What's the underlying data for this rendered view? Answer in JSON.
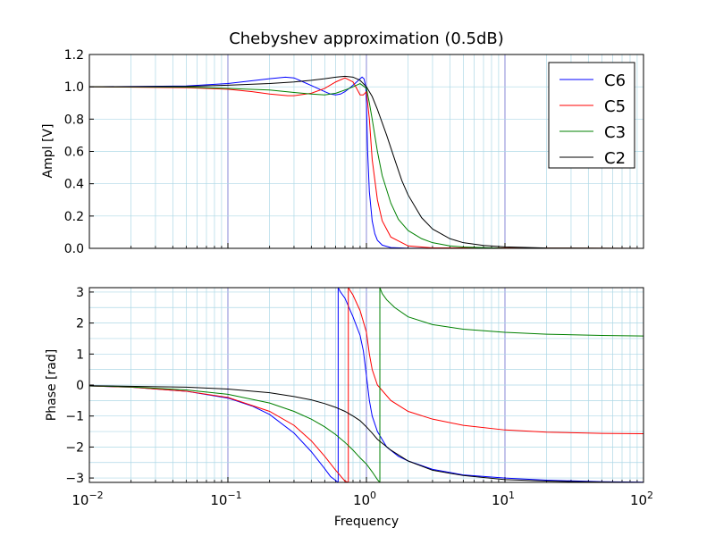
{
  "chart_data": [
    {
      "type": "line",
      "title": "Chebyshev approximation (0.5dB)",
      "xlabel": "",
      "ylabel": "Ampl [V]",
      "xscale": "log",
      "xlim": [
        0.01,
        100
      ],
      "ylim": [
        0.0,
        1.2
      ],
      "yticks": [
        "0.0",
        "0.2",
        "0.4",
        "0.6",
        "0.8",
        "1.0",
        "1.2"
      ],
      "grid": true,
      "legend": "top-right",
      "series": [
        {
          "name": "C6",
          "color": "#0000ff",
          "x": [
            0.01,
            0.05,
            0.1,
            0.2,
            0.26,
            0.3,
            0.35,
            0.42,
            0.5,
            0.55,
            0.6,
            0.65,
            0.7,
            0.75,
            0.8,
            0.85,
            0.9,
            0.93,
            0.96,
            0.99,
            1.0,
            1.02,
            1.05,
            1.1,
            1.15,
            1.2,
            1.3,
            1.5,
            2,
            100
          ],
          "y": [
            1.0,
            1.005,
            1.02,
            1.05,
            1.06,
            1.055,
            1.03,
            1.0,
            0.97,
            0.955,
            0.95,
            0.955,
            0.97,
            0.99,
            1.01,
            1.03,
            1.05,
            1.06,
            1.05,
            1.0,
            0.9,
            0.6,
            0.35,
            0.17,
            0.09,
            0.05,
            0.02,
            0.005,
            0.001,
            0.0
          ]
        },
        {
          "name": "C5",
          "color": "#ff0000",
          "x": [
            0.01,
            0.05,
            0.1,
            0.15,
            0.2,
            0.27,
            0.3,
            0.4,
            0.5,
            0.6,
            0.7,
            0.8,
            0.85,
            0.9,
            0.95,
            1.0,
            1.05,
            1.1,
            1.2,
            1.3,
            1.5,
            2,
            3,
            100
          ],
          "y": [
            1.0,
            0.995,
            0.985,
            0.97,
            0.955,
            0.945,
            0.945,
            0.96,
            0.99,
            1.03,
            1.055,
            1.03,
            0.99,
            0.95,
            0.95,
            0.97,
            0.8,
            0.55,
            0.3,
            0.17,
            0.07,
            0.015,
            0.003,
            0.0
          ]
        },
        {
          "name": "C3",
          "color": "#008000",
          "x": [
            0.01,
            0.05,
            0.1,
            0.2,
            0.3,
            0.4,
            0.5,
            0.6,
            0.7,
            0.8,
            0.9,
            1.0,
            1.05,
            1.1,
            1.2,
            1.3,
            1.5,
            1.7,
            2,
            2.5,
            3,
            4,
            5,
            10,
            100
          ],
          "y": [
            1.0,
            0.998,
            0.99,
            0.98,
            0.965,
            0.955,
            0.95,
            0.96,
            0.98,
            1.0,
            1.02,
            0.99,
            0.9,
            0.8,
            0.6,
            0.45,
            0.28,
            0.18,
            0.11,
            0.06,
            0.035,
            0.015,
            0.008,
            0.001,
            0.0
          ]
        },
        {
          "name": "C2",
          "color": "#000000",
          "x": [
            0.01,
            0.05,
            0.1,
            0.2,
            0.3,
            0.4,
            0.5,
            0.6,
            0.7,
            0.8,
            0.9,
            1.0,
            1.1,
            1.2,
            1.4,
            1.6,
            1.8,
            2,
            2.5,
            3,
            4,
            5,
            7,
            10,
            20,
            100
          ],
          "y": [
            1.0,
            1.002,
            1.01,
            1.02,
            1.03,
            1.04,
            1.05,
            1.06,
            1.065,
            1.06,
            1.04,
            1.0,
            0.94,
            0.86,
            0.7,
            0.55,
            0.42,
            0.33,
            0.19,
            0.12,
            0.06,
            0.035,
            0.018,
            0.009,
            0.002,
            0.0
          ]
        }
      ]
    },
    {
      "type": "line",
      "title": "",
      "xlabel": "Frequency",
      "ylabel": "Phase [rad]",
      "xscale": "log",
      "xlim": [
        0.01,
        100
      ],
      "ylim": [
        -3.14159,
        3.14159
      ],
      "yticks": [
        "3",
        "2",
        "1",
        "0",
        "−1",
        "−2",
        "−3"
      ],
      "xtick_bases": [
        "10",
        "10",
        "10",
        "10",
        "10"
      ],
      "xtick_exponents": [
        "−2",
        "−1",
        "0",
        "1",
        "2"
      ],
      "grid": true,
      "series": [
        {
          "name": "C6",
          "color": "#0000ff",
          "segments": [
            {
              "x": [
                0.01,
                0.02,
                0.05,
                0.1,
                0.15,
                0.2,
                0.3,
                0.4,
                0.5,
                0.55,
                0.6,
                0.625
              ],
              "y": [
                -0.03,
                -0.07,
                -0.2,
                -0.42,
                -0.68,
                -0.95,
                -1.55,
                -2.15,
                -2.7,
                -2.95,
                -3.08,
                -3.14159
              ]
            },
            {
              "x": [
                0.625,
                0.65,
                0.7,
                0.8,
                0.9,
                0.95,
                1.0,
                1.05,
                1.1,
                1.2,
                1.4,
                1.7,
                2,
                3,
                5,
                10,
                20,
                50,
                100
              ],
              "y": [
                3.14159,
                3.0,
                2.8,
                2.2,
                1.6,
                1.1,
                0.3,
                -0.5,
                -1.0,
                -1.5,
                -2.0,
                -2.3,
                -2.45,
                -2.72,
                -2.9,
                -3.0,
                -3.07,
                -3.12,
                -3.135
              ]
            }
          ]
        },
        {
          "name": "C5",
          "color": "#ff0000",
          "segments": [
            {
              "x": [
                0.01,
                0.02,
                0.05,
                0.1,
                0.2,
                0.3,
                0.4,
                0.5,
                0.6,
                0.7,
                0.74
              ],
              "y": [
                -0.03,
                -0.07,
                -0.2,
                -0.4,
                -0.85,
                -1.3,
                -1.8,
                -2.3,
                -2.75,
                -3.1,
                -3.14159
              ]
            },
            {
              "x": [
                0.74,
                0.8,
                0.9,
                1.0,
                1.05,
                1.1,
                1.2,
                1.5,
                2,
                3,
                5,
                10,
                20,
                50,
                100
              ],
              "y": [
                3.14159,
                2.9,
                2.4,
                1.7,
                1.0,
                0.5,
                0.0,
                -0.5,
                -0.85,
                -1.1,
                -1.3,
                -1.45,
                -1.52,
                -1.56,
                -1.57
              ]
            }
          ]
        },
        {
          "name": "C3",
          "color": "#008000",
          "segments": [
            {
              "x": [
                0.01,
                0.02,
                0.05,
                0.1,
                0.2,
                0.3,
                0.4,
                0.5,
                0.6,
                0.7,
                0.8,
                0.9,
                1.0,
                1.1,
                1.2,
                1.25
              ],
              "y": [
                -0.03,
                -0.06,
                -0.16,
                -0.3,
                -0.58,
                -0.85,
                -1.1,
                -1.35,
                -1.6,
                -1.85,
                -2.1,
                -2.35,
                -2.55,
                -2.8,
                -3.05,
                -3.14159
              ]
            },
            {
              "x": [
                1.25,
                1.3,
                1.4,
                1.6,
                2,
                3,
                5,
                10,
                20,
                50,
                100
              ],
              "y": [
                3.14159,
                2.95,
                2.75,
                2.5,
                2.2,
                1.95,
                1.8,
                1.7,
                1.64,
                1.6,
                1.58
              ]
            }
          ]
        },
        {
          "name": "C2",
          "color": "#000000",
          "segments": [
            {
              "x": [
                0.01,
                0.05,
                0.1,
                0.2,
                0.3,
                0.4,
                0.5,
                0.6,
                0.7,
                0.8,
                0.9,
                1.0,
                1.1,
                1.2,
                1.5,
                2,
                3,
                5,
                10,
                20,
                50,
                100
              ],
              "y": [
                -0.02,
                -0.07,
                -0.13,
                -0.25,
                -0.37,
                -0.48,
                -0.6,
                -0.72,
                -0.85,
                -1.0,
                -1.15,
                -1.35,
                -1.55,
                -1.75,
                -2.1,
                -2.45,
                -2.75,
                -2.92,
                -3.05,
                -3.1,
                -3.13,
                -3.14
              ]
            }
          ]
        }
      ]
    }
  ]
}
